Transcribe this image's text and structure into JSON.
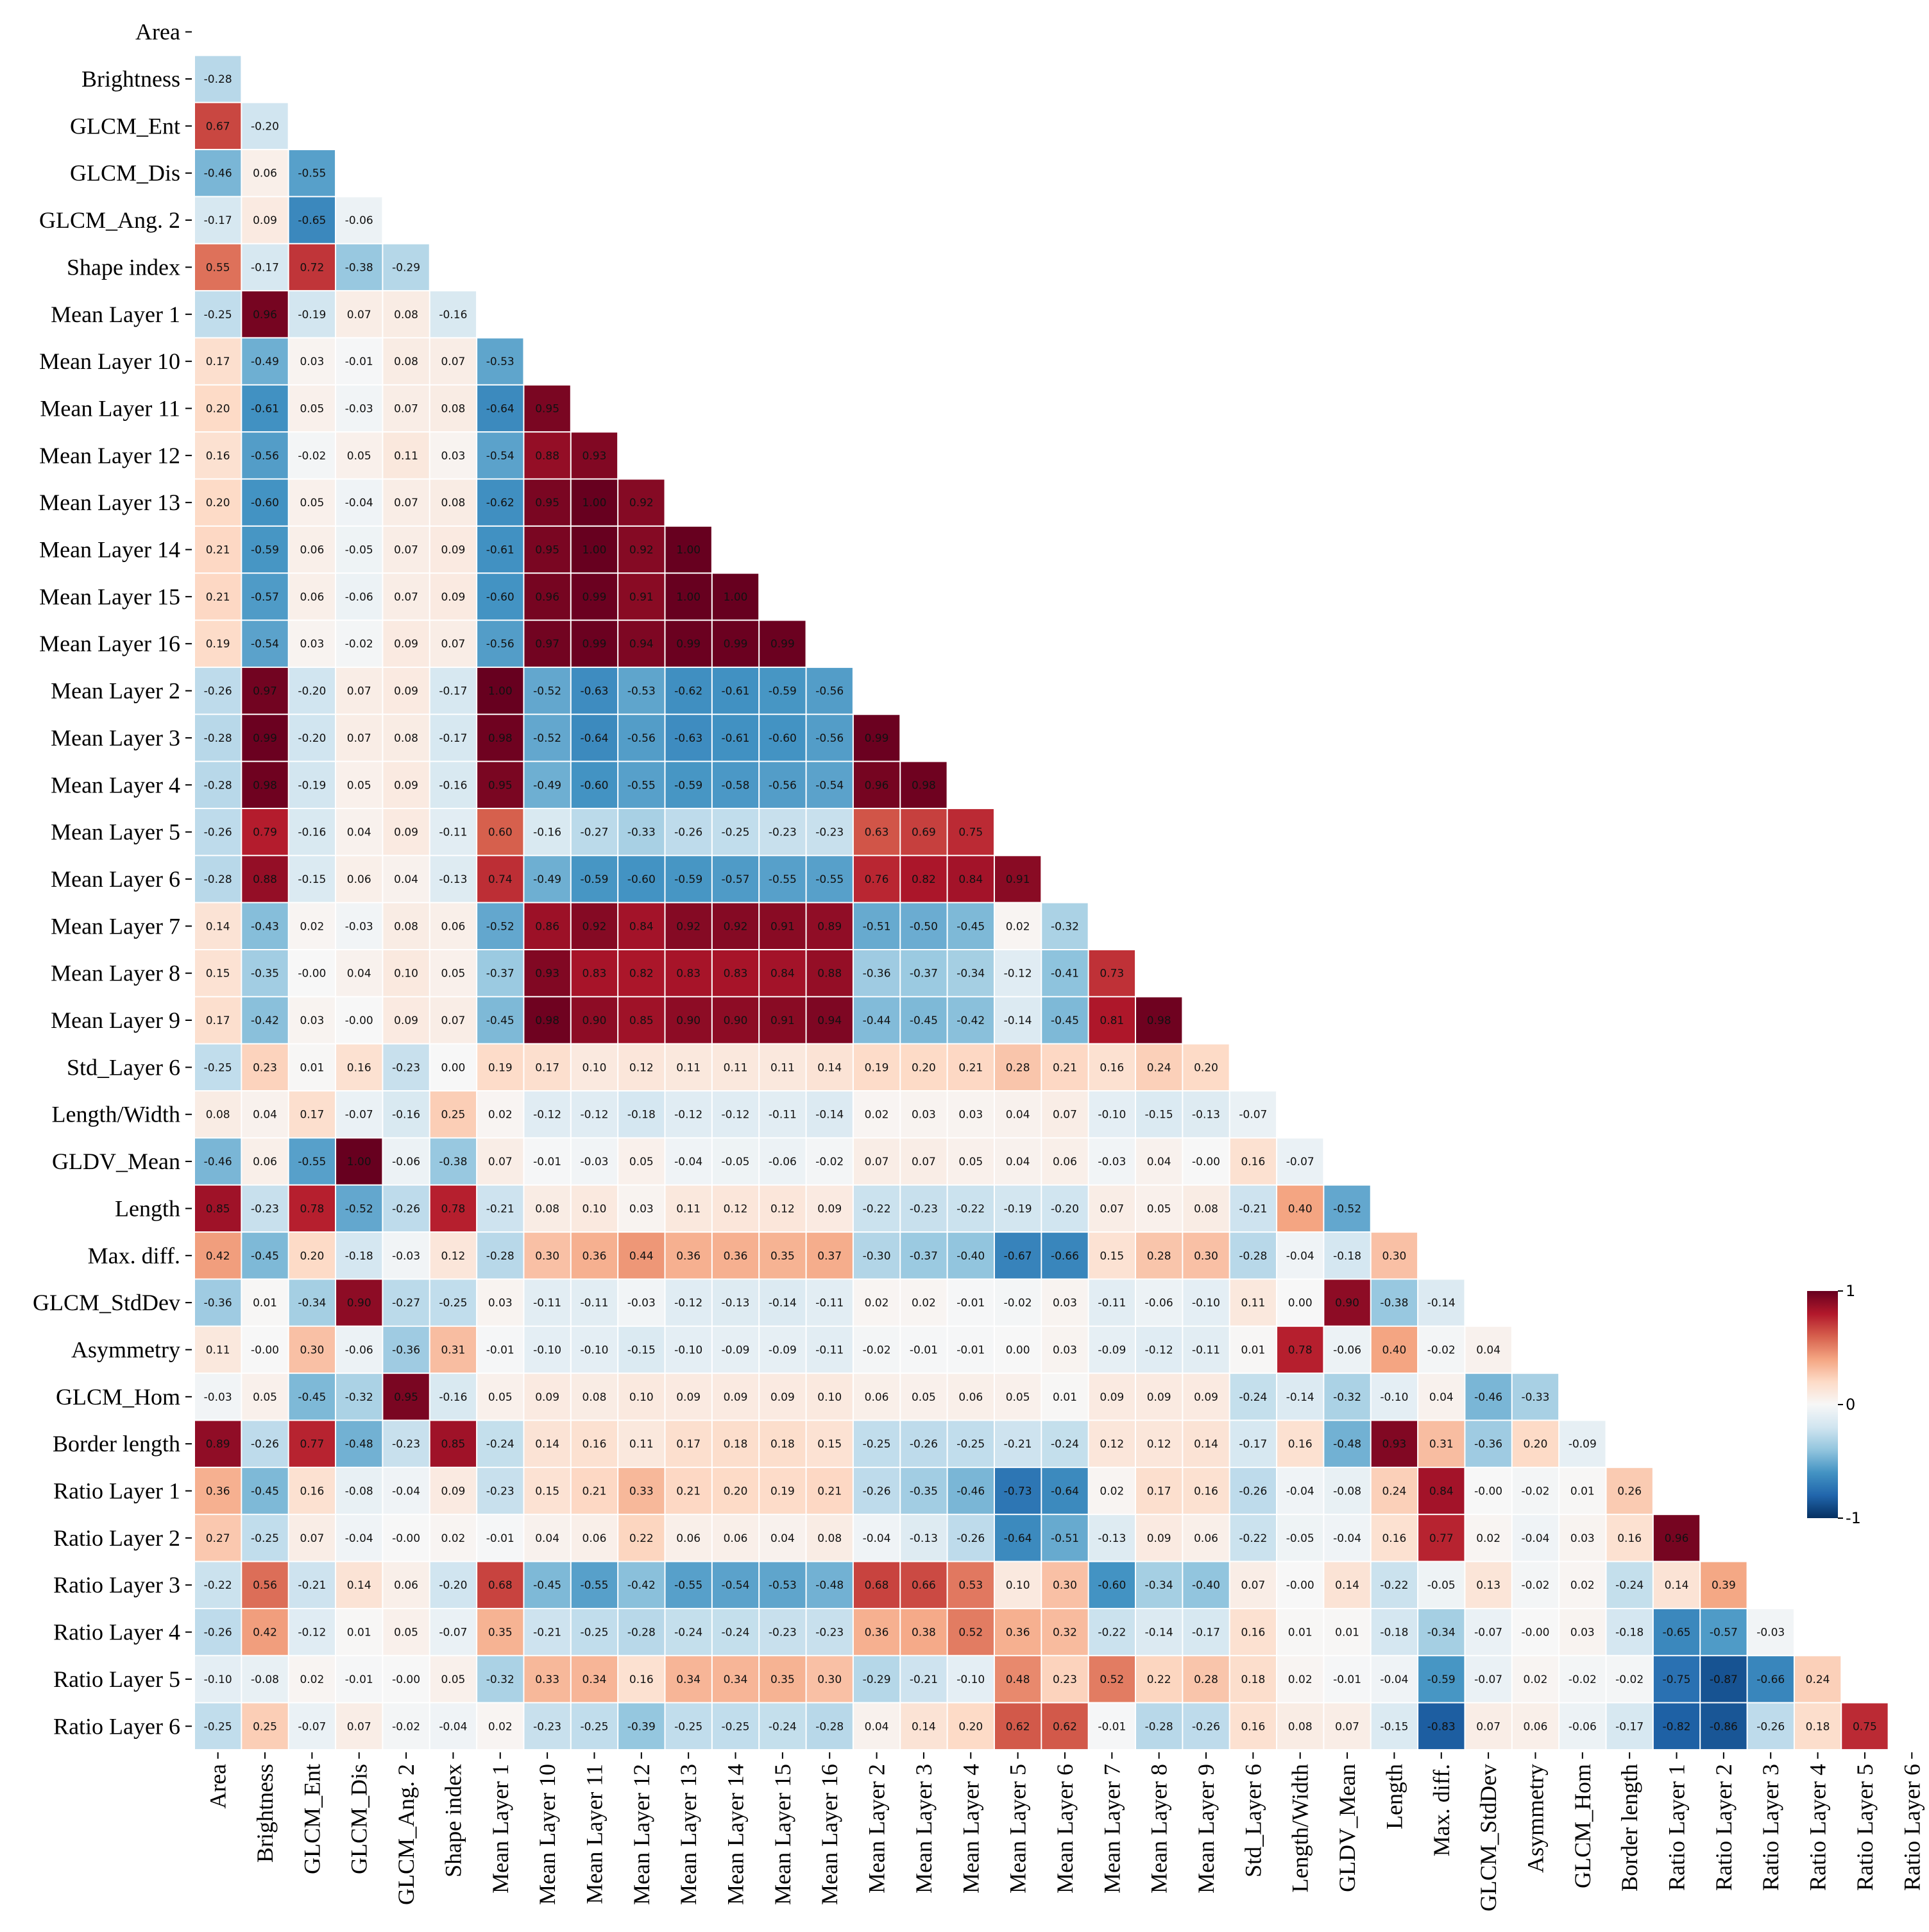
{
  "chart_data": {
    "type": "heatmap",
    "title": "",
    "xlabel": "",
    "ylabel": "",
    "layout": "lower-triangle",
    "value_range": [
      -1,
      1
    ],
    "colormap": "RdBu_r",
    "colors": {
      "neg": "#053061",
      "mid": "#f7f7f7",
      "pos": "#67001f"
    },
    "legend_position": "right",
    "colorbar_ticks": [
      "1",
      "0",
      "-1"
    ],
    "labels": [
      "Area",
      "Brightness",
      "GLCM_Ent",
      "GLCM_Dis",
      "GLCM_Ang. 2",
      "Shape index",
      "Mean Layer 1",
      "Mean Layer 10",
      "Mean Layer 11",
      "Mean Layer 12",
      "Mean Layer 13",
      "Mean Layer 14",
      "Mean Layer 15",
      "Mean Layer 16",
      "Mean Layer 2",
      "Mean Layer 3",
      "Mean Layer 4",
      "Mean Layer 5",
      "Mean Layer 6",
      "Mean Layer 7",
      "Mean Layer 8",
      "Mean Layer 9",
      "Std_Layer 6",
      "Length/Width",
      "GLDV_Mean",
      "Length",
      "Max. diff.",
      "GLCM_StdDev",
      "Asymmetry",
      "GLCM_Hom",
      "Border length",
      "Ratio Layer 1",
      "Ratio Layer 2",
      "Ratio Layer 3",
      "Ratio Layer 4",
      "Ratio Layer 5",
      "Ratio Layer 6"
    ],
    "rows": [
      [],
      [
        "-0.28"
      ],
      [
        "0.67",
        "-0.20"
      ],
      [
        "-0.46",
        "0.06",
        "-0.55"
      ],
      [
        "-0.17",
        "0.09",
        "-0.65",
        "-0.06"
      ],
      [
        "0.55",
        "-0.17",
        "0.72",
        "-0.38",
        "-0.29"
      ],
      [
        "-0.25",
        "0.96",
        "-0.19",
        "0.07",
        "0.08",
        "-0.16"
      ],
      [
        "0.17",
        "-0.49",
        "0.03",
        "-0.01",
        "0.08",
        "0.07",
        "-0.53"
      ],
      [
        "0.20",
        "-0.61",
        "0.05",
        "-0.03",
        "0.07",
        "0.08",
        "-0.64",
        "0.95"
      ],
      [
        "0.16",
        "-0.56",
        "-0.02",
        "0.05",
        "0.11",
        "0.03",
        "-0.54",
        "0.88",
        "0.93"
      ],
      [
        "0.20",
        "-0.60",
        "0.05",
        "-0.04",
        "0.07",
        "0.08",
        "-0.62",
        "0.95",
        "1.00",
        "0.92"
      ],
      [
        "0.21",
        "-0.59",
        "0.06",
        "-0.05",
        "0.07",
        "0.09",
        "-0.61",
        "0.95",
        "1.00",
        "0.92",
        "1.00"
      ],
      [
        "0.21",
        "-0.57",
        "0.06",
        "-0.06",
        "0.07",
        "0.09",
        "-0.60",
        "0.96",
        "0.99",
        "0.91",
        "1.00",
        "1.00"
      ],
      [
        "0.19",
        "-0.54",
        "0.03",
        "-0.02",
        "0.09",
        "0.07",
        "-0.56",
        "0.97",
        "0.99",
        "0.94",
        "0.99",
        "0.99",
        "0.99"
      ],
      [
        "-0.26",
        "0.97",
        "-0.20",
        "0.07",
        "0.09",
        "-0.17",
        "1.00",
        "-0.52",
        "-0.63",
        "-0.53",
        "-0.62",
        "-0.61",
        "-0.59",
        "-0.56"
      ],
      [
        "-0.28",
        "0.99",
        "-0.20",
        "0.07",
        "0.08",
        "-0.17",
        "0.98",
        "-0.52",
        "-0.64",
        "-0.56",
        "-0.63",
        "-0.61",
        "-0.60",
        "-0.56",
        "0.99"
      ],
      [
        "-0.28",
        "0.98",
        "-0.19",
        "0.05",
        "0.09",
        "-0.16",
        "0.95",
        "-0.49",
        "-0.60",
        "-0.55",
        "-0.59",
        "-0.58",
        "-0.56",
        "-0.54",
        "0.96",
        "0.98"
      ],
      [
        "-0.26",
        "0.79",
        "-0.16",
        "0.04",
        "0.09",
        "-0.11",
        "0.60",
        "-0.16",
        "-0.27",
        "-0.33",
        "-0.26",
        "-0.25",
        "-0.23",
        "-0.23",
        "0.63",
        "0.69",
        "0.75"
      ],
      [
        "-0.28",
        "0.88",
        "-0.15",
        "0.06",
        "0.04",
        "-0.13",
        "0.74",
        "-0.49",
        "-0.59",
        "-0.60",
        "-0.59",
        "-0.57",
        "-0.55",
        "-0.55",
        "0.76",
        "0.82",
        "0.84",
        "0.91"
      ],
      [
        "0.14",
        "-0.43",
        "0.02",
        "-0.03",
        "0.08",
        "0.06",
        "-0.52",
        "0.86",
        "0.92",
        "0.84",
        "0.92",
        "0.92",
        "0.91",
        "0.89",
        "-0.51",
        "-0.50",
        "-0.45",
        "0.02",
        "-0.32"
      ],
      [
        "0.15",
        "-0.35",
        "-0.00",
        "0.04",
        "0.10",
        "0.05",
        "-0.37",
        "0.93",
        "0.83",
        "0.82",
        "0.83",
        "0.83",
        "0.84",
        "0.88",
        "-0.36",
        "-0.37",
        "-0.34",
        "-0.12",
        "-0.41",
        "0.73"
      ],
      [
        "0.17",
        "-0.42",
        "0.03",
        "-0.00",
        "0.09",
        "0.07",
        "-0.45",
        "0.98",
        "0.90",
        "0.85",
        "0.90",
        "0.90",
        "0.91",
        "0.94",
        "-0.44",
        "-0.45",
        "-0.42",
        "-0.14",
        "-0.45",
        "0.81",
        "0.98"
      ],
      [
        "-0.25",
        "0.23",
        "0.01",
        "0.16",
        "-0.23",
        "0.00",
        "0.19",
        "0.17",
        "0.10",
        "0.12",
        "0.11",
        "0.11",
        "0.11",
        "0.14",
        "0.19",
        "0.20",
        "0.21",
        "0.28",
        "0.21",
        "0.16",
        "0.24",
        "0.20"
      ],
      [
        "0.08",
        "0.04",
        "0.17",
        "-0.07",
        "-0.16",
        "0.25",
        "0.02",
        "-0.12",
        "-0.12",
        "-0.18",
        "-0.12",
        "-0.12",
        "-0.11",
        "-0.14",
        "0.02",
        "0.03",
        "0.03",
        "0.04",
        "0.07",
        "-0.10",
        "-0.15",
        "-0.13",
        "-0.07"
      ],
      [
        "-0.46",
        "0.06",
        "-0.55",
        "1.00",
        "-0.06",
        "-0.38",
        "0.07",
        "-0.01",
        "-0.03",
        "0.05",
        "-0.04",
        "-0.05",
        "-0.06",
        "-0.02",
        "0.07",
        "0.07",
        "0.05",
        "0.04",
        "0.06",
        "-0.03",
        "0.04",
        "-0.00",
        "0.16",
        "-0.07"
      ],
      [
        "0.85",
        "-0.23",
        "0.78",
        "-0.52",
        "-0.26",
        "0.78",
        "-0.21",
        "0.08",
        "0.10",
        "0.03",
        "0.11",
        "0.12",
        "0.12",
        "0.09",
        "-0.22",
        "-0.23",
        "-0.22",
        "-0.19",
        "-0.20",
        "0.07",
        "0.05",
        "0.08",
        "-0.21",
        "0.40",
        "-0.52"
      ],
      [
        "0.42",
        "-0.45",
        "0.20",
        "-0.18",
        "-0.03",
        "0.12",
        "-0.28",
        "0.30",
        "0.36",
        "0.44",
        "0.36",
        "0.36",
        "0.35",
        "0.37",
        "-0.30",
        "-0.37",
        "-0.40",
        "-0.67",
        "-0.66",
        "0.15",
        "0.28",
        "0.30",
        "-0.28",
        "-0.04",
        "-0.18",
        "0.30"
      ],
      [
        "-0.36",
        "0.01",
        "-0.34",
        "0.90",
        "-0.27",
        "-0.25",
        "0.03",
        "-0.11",
        "-0.11",
        "-0.03",
        "-0.12",
        "-0.13",
        "-0.14",
        "-0.11",
        "0.02",
        "0.02",
        "-0.01",
        "-0.02",
        "0.03",
        "-0.11",
        "-0.06",
        "-0.10",
        "0.11",
        "0.00",
        "0.90",
        "-0.38",
        "-0.14"
      ],
      [
        "0.11",
        "-0.00",
        "0.30",
        "-0.06",
        "-0.36",
        "0.31",
        "-0.01",
        "-0.10",
        "-0.10",
        "-0.15",
        "-0.10",
        "-0.09",
        "-0.09",
        "-0.11",
        "-0.02",
        "-0.01",
        "-0.01",
        "0.00",
        "0.03",
        "-0.09",
        "-0.12",
        "-0.11",
        "0.01",
        "0.78",
        "-0.06",
        "0.40",
        "-0.02",
        "0.04"
      ],
      [
        "-0.03",
        "0.05",
        "-0.45",
        "-0.32",
        "0.95",
        "-0.16",
        "0.05",
        "0.09",
        "0.08",
        "0.10",
        "0.09",
        "0.09",
        "0.09",
        "0.10",
        "0.06",
        "0.05",
        "0.06",
        "0.05",
        "0.01",
        "0.09",
        "0.09",
        "0.09",
        "-0.24",
        "-0.14",
        "-0.32",
        "-0.10",
        "0.04",
        "-0.46",
        "-0.33"
      ],
      [
        "0.89",
        "-0.26",
        "0.77",
        "-0.48",
        "-0.23",
        "0.85",
        "-0.24",
        "0.14",
        "0.16",
        "0.11",
        "0.17",
        "0.18",
        "0.18",
        "0.15",
        "-0.25",
        "-0.26",
        "-0.25",
        "-0.21",
        "-0.24",
        "0.12",
        "0.12",
        "0.14",
        "-0.17",
        "0.16",
        "-0.48",
        "0.93",
        "0.31",
        "-0.36",
        "0.20",
        "-0.09"
      ],
      [
        "0.36",
        "-0.45",
        "0.16",
        "-0.08",
        "-0.04",
        "0.09",
        "-0.23",
        "0.15",
        "0.21",
        "0.33",
        "0.21",
        "0.20",
        "0.19",
        "0.21",
        "-0.26",
        "-0.35",
        "-0.46",
        "-0.73",
        "-0.64",
        "0.02",
        "0.17",
        "0.16",
        "-0.26",
        "-0.04",
        "-0.08",
        "0.24",
        "0.84",
        "-0.00",
        "-0.02",
        "0.01",
        "0.26"
      ],
      [
        "0.27",
        "-0.25",
        "0.07",
        "-0.04",
        "-0.00",
        "0.02",
        "-0.01",
        "0.04",
        "0.06",
        "0.22",
        "0.06",
        "0.06",
        "0.04",
        "0.08",
        "-0.04",
        "-0.13",
        "-0.26",
        "-0.64",
        "-0.51",
        "-0.13",
        "0.09",
        "0.06",
        "-0.22",
        "-0.05",
        "-0.04",
        "0.16",
        "0.77",
        "0.02",
        "-0.04",
        "0.03",
        "0.16",
        "0.96"
      ],
      [
        "-0.22",
        "0.56",
        "-0.21",
        "0.14",
        "0.06",
        "-0.20",
        "0.68",
        "-0.45",
        "-0.55",
        "-0.42",
        "-0.55",
        "-0.54",
        "-0.53",
        "-0.48",
        "0.68",
        "0.66",
        "0.53",
        "0.10",
        "0.30",
        "-0.60",
        "-0.34",
        "-0.40",
        "0.07",
        "-0.00",
        "0.14",
        "-0.22",
        "-0.05",
        "0.13",
        "-0.02",
        "0.02",
        "-0.24",
        "0.14",
        "0.39"
      ],
      [
        "-0.26",
        "0.42",
        "-0.12",
        "0.01",
        "0.05",
        "-0.07",
        "0.35",
        "-0.21",
        "-0.25",
        "-0.28",
        "-0.24",
        "-0.24",
        "-0.23",
        "-0.23",
        "0.36",
        "0.38",
        "0.52",
        "0.36",
        "0.32",
        "-0.22",
        "-0.14",
        "-0.17",
        "0.16",
        "0.01",
        "0.01",
        "-0.18",
        "-0.34",
        "-0.07",
        "-0.00",
        "0.03",
        "-0.18",
        "-0.65",
        "-0.57",
        "-0.03"
      ],
      [
        "-0.10",
        "-0.08",
        "0.02",
        "-0.01",
        "-0.00",
        "0.05",
        "-0.32",
        "0.33",
        "0.34",
        "0.16",
        "0.34",
        "0.34",
        "0.35",
        "0.30",
        "-0.29",
        "-0.21",
        "-0.10",
        "0.48",
        "0.23",
        "0.52",
        "0.22",
        "0.28",
        "0.18",
        "0.02",
        "-0.01",
        "-0.04",
        "-0.59",
        "-0.07",
        "0.02",
        "-0.02",
        "-0.02",
        "-0.75",
        "-0.87",
        "-0.66",
        "0.24"
      ],
      [
        "-0.25",
        "0.25",
        "-0.07",
        "0.07",
        "-0.02",
        "-0.04",
        "0.02",
        "-0.23",
        "-0.25",
        "-0.39",
        "-0.25",
        "-0.25",
        "-0.24",
        "-0.28",
        "0.04",
        "0.14",
        "0.20",
        "0.62",
        "0.62",
        "-0.01",
        "-0.28",
        "-0.26",
        "0.16",
        "0.08",
        "0.07",
        "-0.15",
        "-0.83",
        "0.07",
        "0.06",
        "-0.06",
        "-0.17",
        "-0.82",
        "-0.86",
        "-0.26",
        "0.18",
        "0.75"
      ]
    ]
  }
}
